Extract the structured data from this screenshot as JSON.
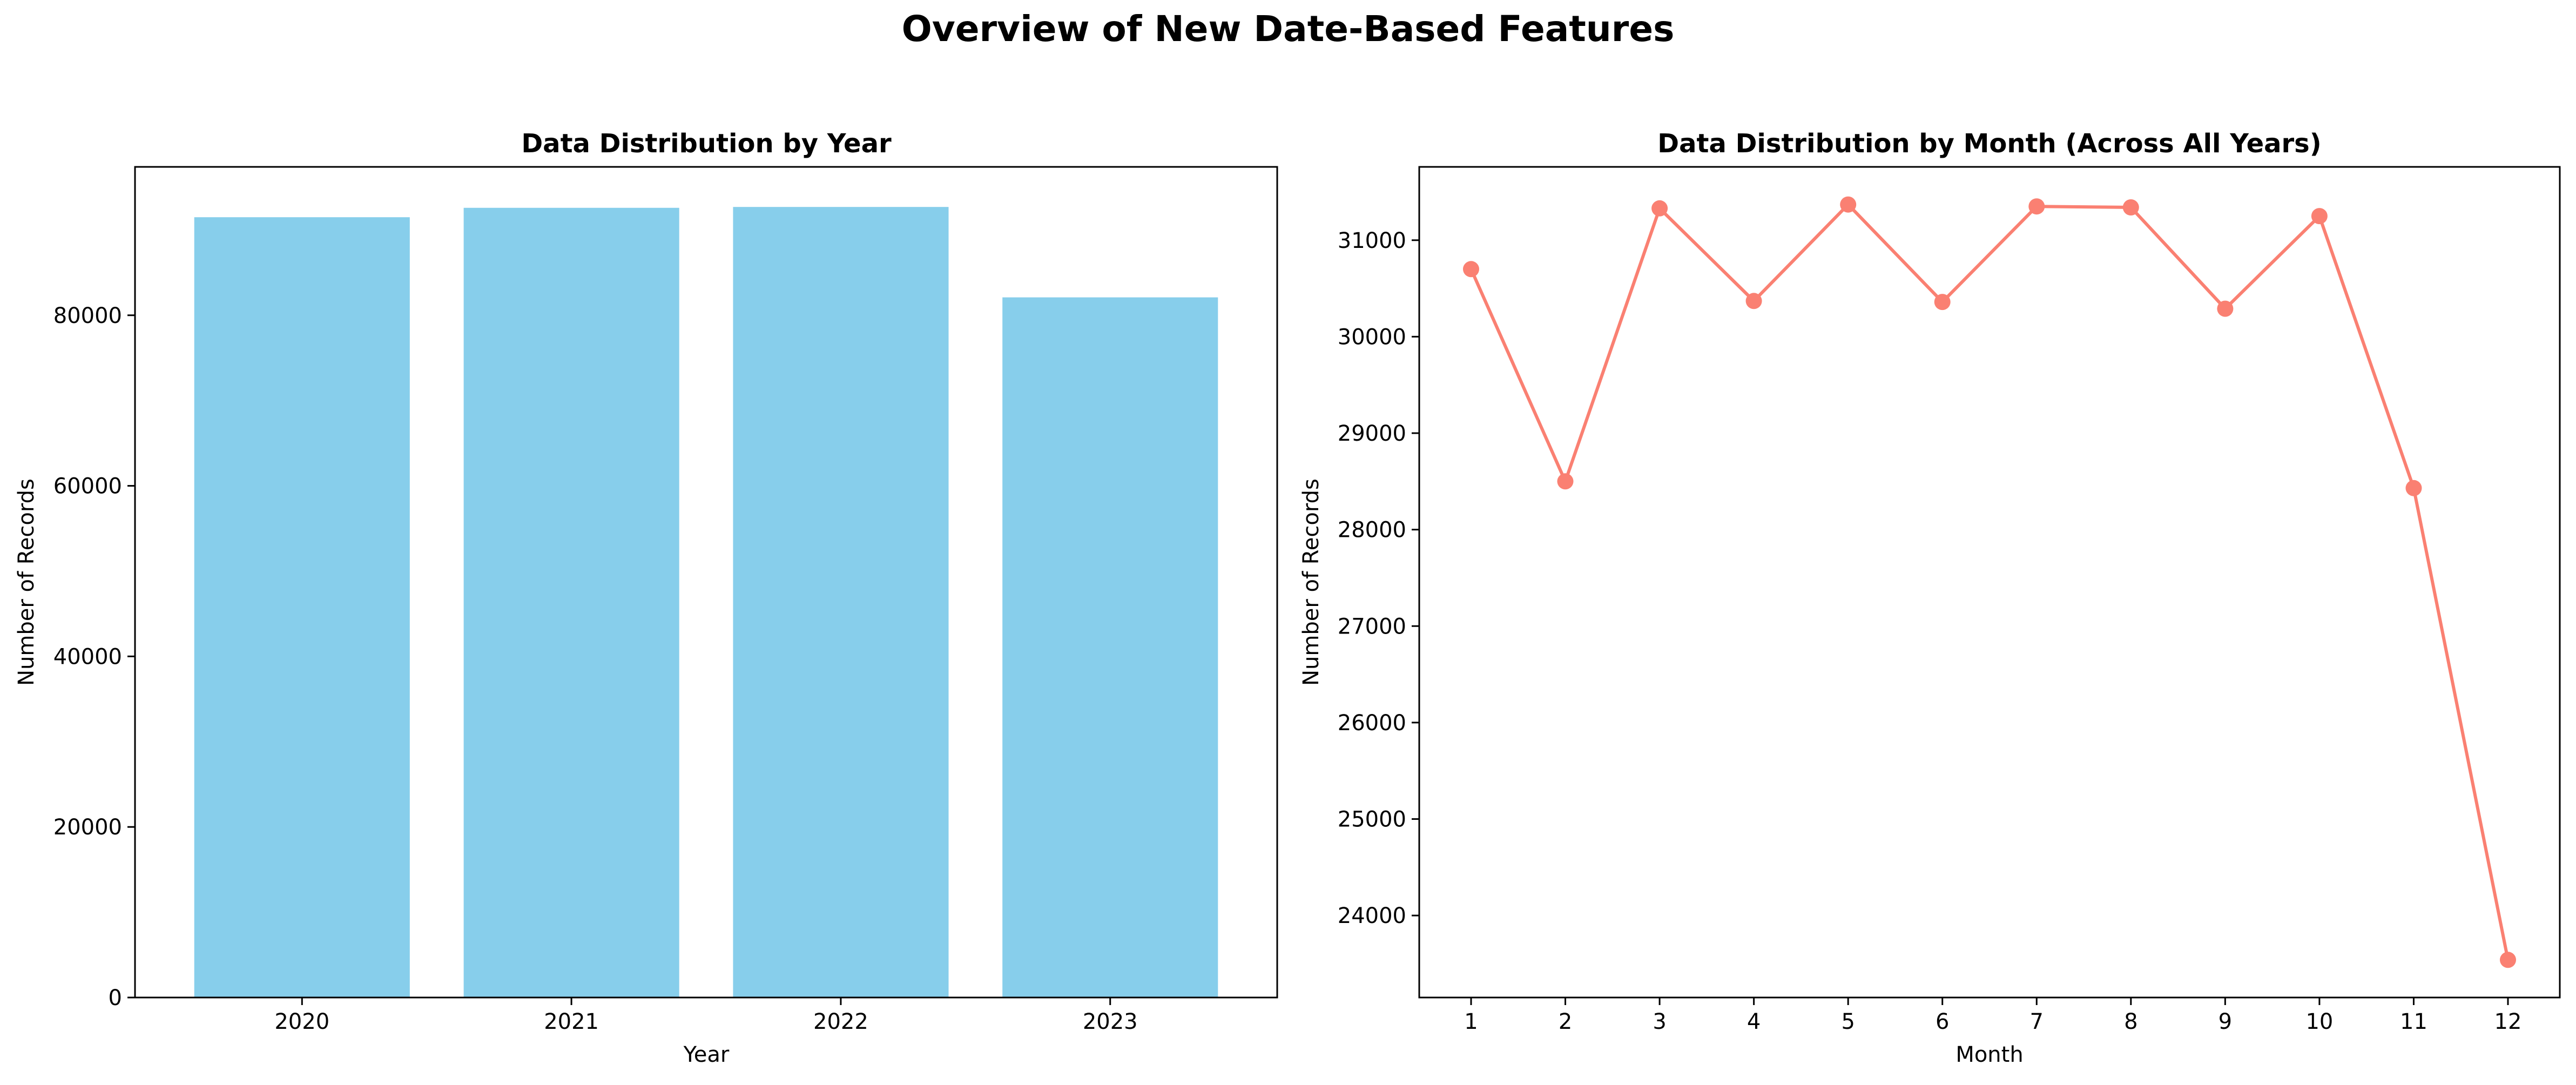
{
  "figure": {
    "suptitle": "Overview of New Date-Based Features"
  },
  "chart_data": [
    {
      "type": "bar",
      "title": "Data Distribution by Year",
      "xlabel": "Year",
      "ylabel": "Number of Records",
      "categories": [
        "2020",
        "2021",
        "2022",
        "2023"
      ],
      "values": [
        91500,
        92600,
        92700,
        82100
      ],
      "ylim": [
        0,
        97400
      ],
      "yticks": [
        0,
        20000,
        40000,
        60000,
        80000
      ],
      "color": "#87CEEB",
      "grid": false,
      "legend": "none"
    },
    {
      "type": "line",
      "title": "Data Distribution by Month (Across All Years)",
      "xlabel": "Month",
      "ylabel": "Number of Records",
      "x": [
        1,
        2,
        3,
        4,
        5,
        6,
        7,
        8,
        9,
        10,
        11,
        12
      ],
      "values": [
        30700,
        28500,
        31330,
        30370,
        31370,
        30360,
        31350,
        31340,
        30290,
        31250,
        28430,
        23540
      ],
      "ylim": [
        23150,
        31760
      ],
      "yticks": [
        24000,
        25000,
        26000,
        27000,
        28000,
        29000,
        30000,
        31000
      ],
      "color": "#FA8072",
      "marker": "circle",
      "grid": false,
      "legend": "none"
    }
  ]
}
